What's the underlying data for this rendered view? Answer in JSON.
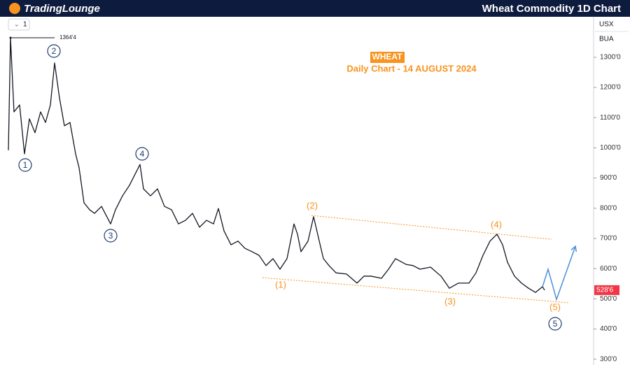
{
  "header": {
    "logo": "TradingLounge",
    "title": "Wheat Commodity 1D Chart"
  },
  "toolbar": {
    "interval": "1",
    "currency": "USX",
    "unit": "BUA"
  },
  "chart_data": {
    "type": "line",
    "title": "WHEAT",
    "subtitle": "Daily Chart - 14 AUGUST 2024",
    "color": "#131722",
    "x": [
      4,
      7,
      12,
      20,
      27,
      34,
      42,
      50,
      57,
      64,
      70,
      77,
      84,
      92,
      100,
      105,
      112,
      120,
      127,
      137,
      150,
      157,
      167,
      177,
      187,
      192,
      197,
      207,
      217,
      227,
      237,
      247,
      257,
      267,
      277,
      287,
      297,
      304,
      312,
      322,
      332,
      342,
      352,
      362,
      372,
      382,
      392,
      402,
      412,
      417,
      422,
      432,
      440,
      447,
      454,
      462,
      472,
      487,
      502,
      512,
      522,
      537,
      547,
      557,
      572,
      582,
      592,
      607,
      622,
      634,
      647,
      662,
      672,
      682,
      692,
      702,
      710,
      717,
      727,
      737,
      747,
      757,
      767,
      770
    ],
    "values": [
      992,
      1364.5,
      1119,
      1142,
      980,
      1096,
      1050,
      1119,
      1084,
      1142,
      1281,
      1165,
      1073,
      1084,
      980,
      934,
      818,
      795,
      783,
      806,
      748,
      795,
      841,
      876,
      922,
      945,
      864,
      841,
      864,
      806,
      795,
      748,
      760,
      783,
      737,
      760,
      748,
      799,
      725,
      679,
      691,
      667,
      656,
      644,
      610,
      633,
      598,
      633,
      748,
      714,
      656,
      691,
      772,
      702,
      633,
      610,
      586,
      582,
      552,
      575,
      575,
      568,
      598,
      633,
      614,
      610,
      598,
      605,
      575,
      535,
      552,
      552,
      586,
      644,
      691,
      714,
      679,
      621,
      575,
      552,
      535,
      521,
      540,
      528.75
    ],
    "xlim": [
      0,
      840
    ],
    "ylim": [
      290,
      1434
    ],
    "yticks": [
      {
        "value": 300,
        "label": "300'0"
      },
      {
        "value": 400,
        "label": "400'0"
      },
      {
        "value": 500,
        "label": "500'0"
      },
      {
        "value": 600,
        "label": "600'0"
      },
      {
        "value": 700,
        "label": "700'0"
      },
      {
        "value": 800,
        "label": "800'0"
      },
      {
        "value": 900,
        "label": "900'0"
      },
      {
        "value": 1000,
        "label": "1000'0"
      },
      {
        "value": 1100,
        "label": "1100'0"
      },
      {
        "value": 1200,
        "label": "1200'0"
      },
      {
        "value": 1300,
        "label": "1300'0"
      }
    ],
    "high": {
      "value": 1364.5,
      "label": "1364'4"
    },
    "last": {
      "value": 528.75,
      "label": "528'6",
      "color": "#f23645"
    },
    "channel": {
      "color": "#f7931e",
      "upper": {
        "x": [
          437,
          780
        ],
        "values": [
          776,
          697
        ]
      },
      "lower": {
        "x": [
          367,
          804
        ],
        "values": [
          570,
          487
        ]
      }
    },
    "projection": {
      "color": "#4a8fd9",
      "x": [
        767,
        775,
        787,
        814
      ],
      "values": [
        540,
        598,
        498,
        674
      ]
    },
    "wave_labels": {
      "primary": [
        "1",
        "2",
        "3",
        "4",
        "5"
      ],
      "intermediate": [
        "(1)",
        "(2)",
        "(3)",
        "(4)",
        "(5)"
      ]
    }
  }
}
